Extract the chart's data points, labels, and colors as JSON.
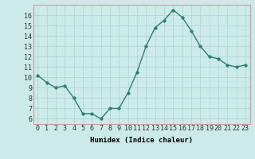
{
  "x": [
    0,
    1,
    2,
    3,
    4,
    5,
    6,
    7,
    8,
    9,
    10,
    11,
    12,
    13,
    14,
    15,
    16,
    17,
    18,
    19,
    20,
    21,
    22,
    23
  ],
  "y": [
    10.2,
    9.5,
    9.0,
    9.2,
    8.0,
    6.5,
    6.5,
    6.0,
    7.0,
    7.0,
    8.5,
    10.5,
    13.0,
    14.8,
    15.5,
    16.5,
    15.8,
    14.5,
    13.0,
    12.0,
    11.8,
    11.2,
    11.0,
    11.2
  ],
  "line_color": "#2d7f6f",
  "marker_color": "#2d7f6f",
  "background_color": "#cceae7",
  "grid_color": "#b0d8d4",
  "xlabel": "Humidex (Indice chaleur)",
  "xlim": [
    -0.5,
    23.5
  ],
  "ylim": [
    5.5,
    17.0
  ],
  "yticks": [
    6,
    7,
    8,
    9,
    10,
    11,
    12,
    13,
    14,
    15,
    16
  ],
  "xticks": [
    0,
    1,
    2,
    3,
    4,
    5,
    6,
    7,
    8,
    9,
    10,
    11,
    12,
    13,
    14,
    15,
    16,
    17,
    18,
    19,
    20,
    21,
    22,
    23
  ],
  "xtick_labels": [
    "0",
    "1",
    "2",
    "3",
    "4",
    "5",
    "6",
    "7",
    "8",
    "9",
    "10",
    "11",
    "12",
    "13",
    "14",
    "15",
    "16",
    "17",
    "18",
    "19",
    "20",
    "21",
    "22",
    "23"
  ],
  "marker_size": 2.5,
  "line_width": 1.0,
  "tick_fontsize": 6,
  "xlabel_fontsize": 6.5
}
